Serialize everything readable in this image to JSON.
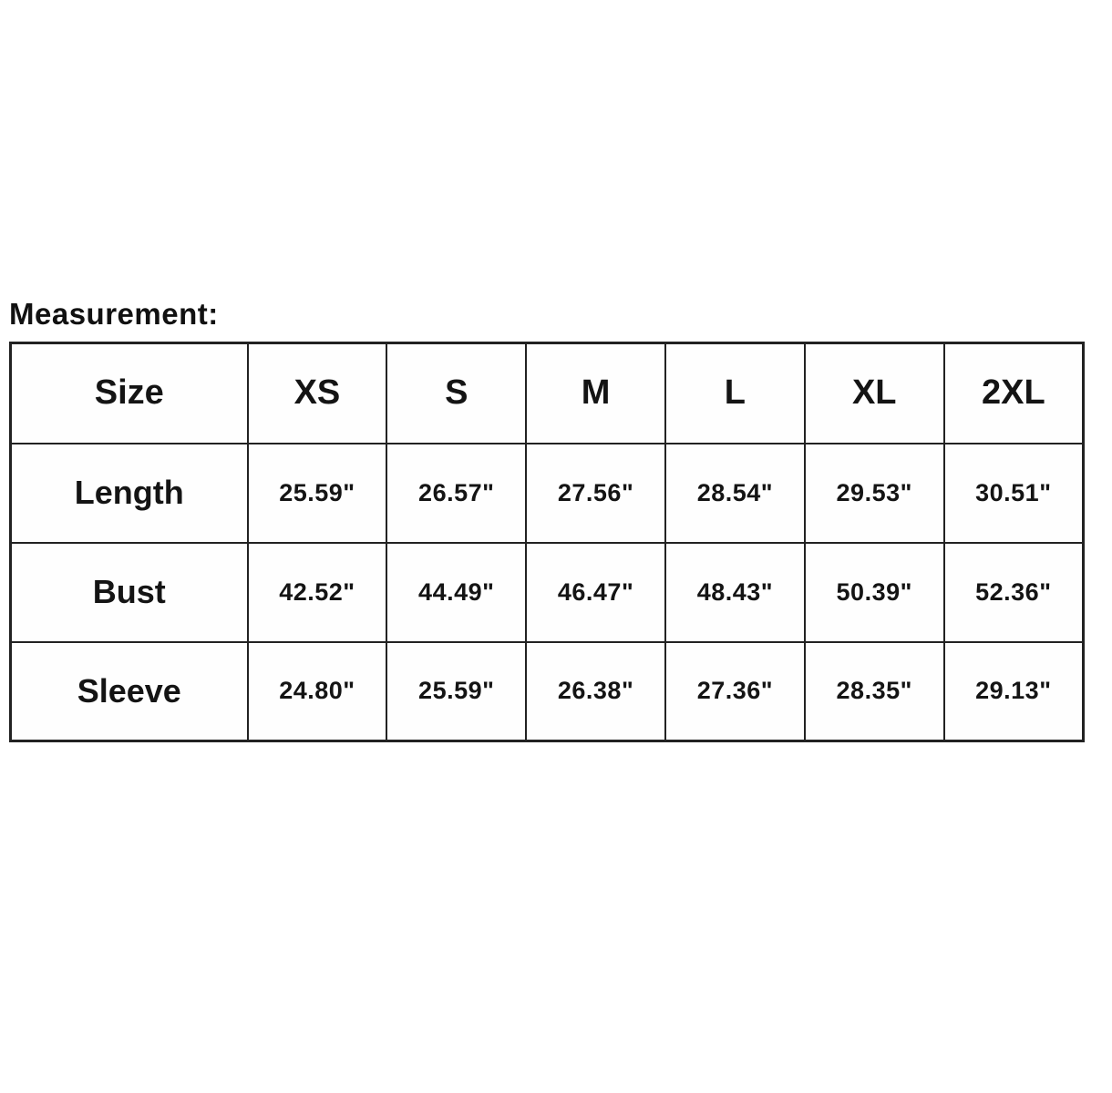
{
  "title": "Measurement:",
  "colors": {
    "background": "#ffffff",
    "text": "#141414",
    "border": "#222222"
  },
  "chart_data": {
    "type": "table",
    "title": "Measurement:",
    "columns": [
      "Size",
      "XS",
      "S",
      "M",
      "L",
      "XL",
      "2XL"
    ],
    "rows": [
      {
        "label": "Length",
        "values": [
          "25.59\"",
          "26.57\"",
          "27.56\"",
          "28.54\"",
          "29.53\"",
          "30.51\""
        ]
      },
      {
        "label": "Bust",
        "values": [
          "42.52\"",
          "44.49\"",
          "46.47\"",
          "48.43\"",
          "50.39\"",
          "52.36\""
        ]
      },
      {
        "label": "Sleeve",
        "values": [
          "24.80\"",
          "25.59\"",
          "26.38\"",
          "27.36\"",
          "28.35\"",
          "29.13\""
        ]
      }
    ],
    "units": "inches",
    "layout": {
      "grid": true,
      "header_row": true,
      "label_column": true
    }
  }
}
